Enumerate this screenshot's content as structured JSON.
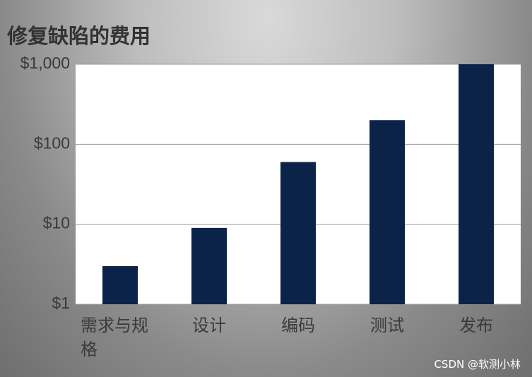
{
  "chart_data": {
    "type": "bar",
    "title": "修复缺陷的费用",
    "categories": [
      "需求与规格",
      "设计",
      "编码",
      "测试",
      "发布"
    ],
    "values": [
      3,
      9,
      60,
      200,
      1000
    ],
    "color": "#0b2349",
    "yscale": "log",
    "ylim": [
      1,
      1000
    ],
    "yticks": [
      {
        "value": 1,
        "label": "$1"
      },
      {
        "value": 10,
        "label": "$10"
      },
      {
        "value": 100,
        "label": "$100"
      },
      {
        "value": 1000,
        "label": "$1,000"
      }
    ],
    "grid": true
  },
  "watermark": "CSDN @软测小林"
}
